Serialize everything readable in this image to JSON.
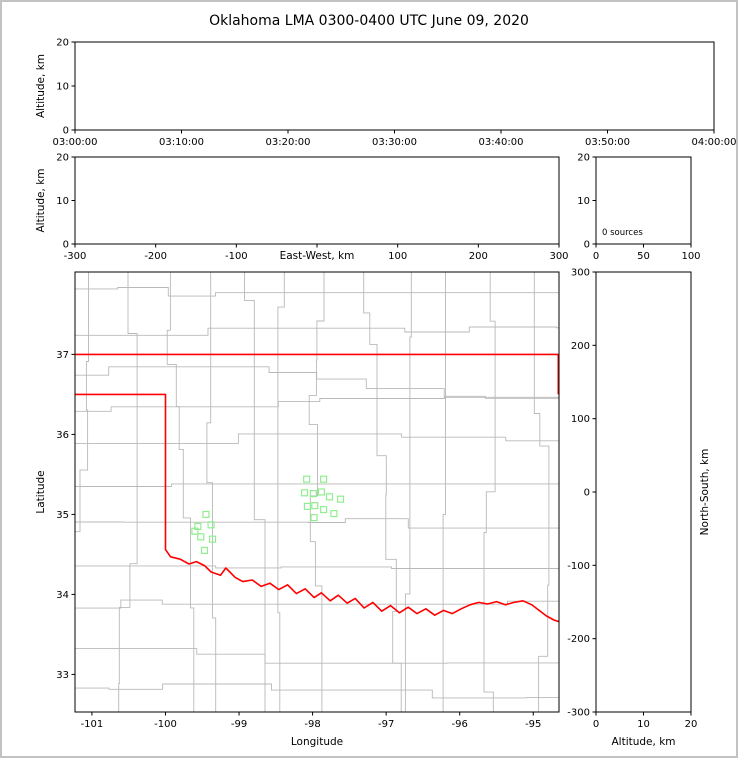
{
  "title": "Oklahoma LMA 0300-0400 UTC June 09, 2020",
  "colors": {
    "background": "#ffffff",
    "frame_border": "#c2c2c2",
    "axis": "#000000",
    "text": "#000000",
    "county_lines": "#b9b9b9",
    "state_border": "#ff0000",
    "station_marker": "#90ee90"
  },
  "chart_data": [
    {
      "id": "time_height_panel",
      "type": "scatter",
      "title": "",
      "xlabel": "",
      "ylabel": "Altitude, km",
      "x_tick_labels": [
        "03:00:00",
        "03:10:00",
        "03:20:00",
        "03:30:00",
        "03:40:00",
        "03:50:00",
        "04:00:00"
      ],
      "y_ticks": [
        0,
        10,
        20
      ],
      "ylim": [
        0,
        20
      ],
      "grid": false,
      "series": []
    },
    {
      "id": "ew_height_panel",
      "type": "scatter",
      "xlabel": "East-West, km",
      "xlabel_in_tick_row": true,
      "ylabel": "Altitude, km",
      "x_ticks": [
        -300,
        -200,
        -100,
        0,
        100,
        200,
        300
      ],
      "x_tick_labels": [
        "-300",
        "-200",
        "-100",
        "",
        "100",
        "200",
        "300"
      ],
      "xlim": [
        -300,
        300
      ],
      "y_ticks": [
        0,
        10,
        20
      ],
      "ylim": [
        0,
        20
      ],
      "grid": false,
      "series": []
    },
    {
      "id": "altitude_histogram_panel",
      "type": "line",
      "annotation": "0 sources",
      "x_ticks": [
        0,
        50,
        100
      ],
      "xlim": [
        0,
        100
      ],
      "y_ticks": [
        0,
        10,
        20
      ],
      "ylim": [
        0,
        20
      ],
      "grid": false,
      "series": []
    },
    {
      "id": "plan_view_panel",
      "type": "scatter",
      "xlabel": "Longitude",
      "ylabel": "Latitude",
      "x_ticks": [
        -101,
        -100,
        -99,
        -98,
        -97,
        -96,
        -95
      ],
      "xlim": [
        -101.23,
        -94.65
      ],
      "y_ticks": [
        33,
        34,
        35,
        36,
        37
      ],
      "ylim": [
        32.53,
        38.03
      ],
      "lightning_sources": [],
      "lma_stations_lon_lat": [
        [
          -98.08,
          35.44
        ],
        [
          -97.85,
          35.44
        ],
        [
          -98.11,
          35.27
        ],
        [
          -97.99,
          35.26
        ],
        [
          -97.88,
          35.28
        ],
        [
          -97.77,
          35.22
        ],
        [
          -98.07,
          35.1
        ],
        [
          -97.97,
          35.11
        ],
        [
          -97.85,
          35.06
        ],
        [
          -97.62,
          35.19
        ],
        [
          -97.71,
          35.01
        ],
        [
          -97.98,
          34.96
        ],
        [
          -99.45,
          35.0
        ],
        [
          -99.6,
          34.79
        ],
        [
          -99.56,
          34.85
        ],
        [
          -99.38,
          34.87
        ],
        [
          -99.52,
          34.72
        ],
        [
          -99.36,
          34.69
        ],
        [
          -99.47,
          34.55
        ]
      ],
      "oklahoma_border_polylines_lon_lat": [
        [
          [
            -101.23,
            37.0
          ],
          [
            -94.66,
            37.0
          ],
          [
            -94.66,
            36.5
          ]
        ],
        [
          [
            -101.23,
            36.5
          ],
          [
            -100.0,
            36.5
          ],
          [
            -100.0,
            34.56
          ],
          [
            -99.93,
            34.47
          ],
          [
            -99.8,
            34.44
          ],
          [
            -99.68,
            34.38
          ],
          [
            -99.58,
            34.41
          ],
          [
            -99.47,
            34.36
          ],
          [
            -99.38,
            34.28
          ],
          [
            -99.25,
            34.24
          ],
          [
            -99.18,
            34.33
          ],
          [
            -99.05,
            34.21
          ],
          [
            -98.95,
            34.16
          ],
          [
            -98.82,
            34.18
          ],
          [
            -98.7,
            34.1
          ],
          [
            -98.58,
            34.14
          ],
          [
            -98.46,
            34.06
          ],
          [
            -98.34,
            34.12
          ],
          [
            -98.22,
            34.01
          ],
          [
            -98.1,
            34.07
          ],
          [
            -97.98,
            33.96
          ],
          [
            -97.88,
            34.02
          ],
          [
            -97.76,
            33.92
          ],
          [
            -97.65,
            33.99
          ],
          [
            -97.53,
            33.89
          ],
          [
            -97.42,
            33.95
          ],
          [
            -97.3,
            33.83
          ],
          [
            -97.18,
            33.9
          ],
          [
            -97.06,
            33.79
          ],
          [
            -96.94,
            33.86
          ],
          [
            -96.82,
            33.77
          ],
          [
            -96.7,
            33.84
          ],
          [
            -96.58,
            33.76
          ],
          [
            -96.46,
            33.82
          ],
          [
            -96.34,
            33.74
          ],
          [
            -96.22,
            33.8
          ],
          [
            -96.1,
            33.76
          ],
          [
            -95.98,
            33.82
          ],
          [
            -95.86,
            33.87
          ],
          [
            -95.74,
            33.9
          ],
          [
            -95.62,
            33.88
          ],
          [
            -95.5,
            33.91
          ],
          [
            -95.38,
            33.87
          ],
          [
            -95.26,
            33.9
          ],
          [
            -95.14,
            33.92
          ],
          [
            -95.02,
            33.87
          ],
          [
            -94.92,
            33.8
          ],
          [
            -94.82,
            33.73
          ],
          [
            -94.72,
            33.68
          ],
          [
            -94.65,
            33.66
          ]
        ]
      ]
    },
    {
      "id": "ns_height_panel",
      "type": "scatter",
      "xlabel": "Altitude, km",
      "ylabel": "North-South, km",
      "x_ticks": [
        0,
        10,
        20
      ],
      "xlim": [
        0,
        20
      ],
      "y_ticks": [
        300,
        200,
        100,
        0,
        -100,
        -200,
        -300
      ],
      "ylim": [
        -300,
        300
      ],
      "grid": false,
      "series": []
    }
  ]
}
